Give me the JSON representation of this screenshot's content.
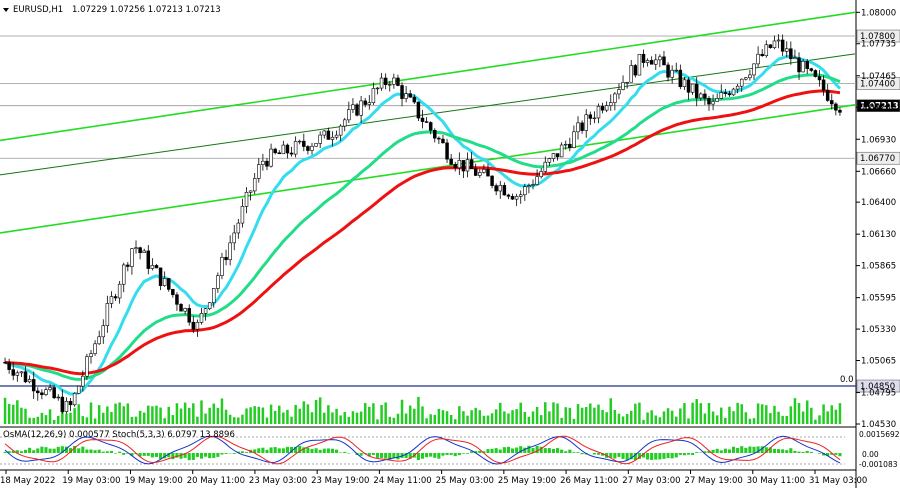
{
  "header": {
    "symbol": "EURUSD,H1",
    "quote": "1.07229 1.07256 1.07213 1.07213"
  },
  "indicator": {
    "label": "OsMA(12,26,9) 0.000577 Stoch(5,3,3) 6.0797 13.8896",
    "axis_top": "0.0015692",
    "axis_zero": "0.00",
    "axis_bottom": "-0.001083"
  },
  "colors": {
    "bull_candle": "#ffffff",
    "bear_candle": "#000000",
    "channel_line": "#22dd22",
    "ema_fast": "#33ddee",
    "ema_mid": "#22dd88",
    "ema_slow": "#ee1111",
    "level_line": "#223388",
    "volume": "#22cc22",
    "histogram": "#22cc22",
    "osc_blue": "#1133cc",
    "osc_red": "#ee2222"
  },
  "chart_data": {
    "type": "candlestick",
    "title": "EURUSD,H1",
    "y_axis_ticks": [
      "1.08000",
      "1.07735",
      "1.07465",
      "1.07200",
      "1.06930",
      "1.06660",
      "1.06400",
      "1.06130",
      "1.05865",
      "1.05595",
      "1.05330",
      "1.05065",
      "1.04795",
      "1.04530"
    ],
    "ylim": [
      1.0453,
      1.0807
    ],
    "x_axis_ticks": [
      "18 May 2022",
      "19 May 03:00",
      "19 May 19:00",
      "20 May 11:00",
      "23 May 03:00",
      "23 May 19:00",
      "24 May 11:00",
      "25 May 03:00",
      "25 May 19:00",
      "26 May 11:00",
      "27 May 03:00",
      "27 May 19:00",
      "30 May 11:00",
      "31 May 03:00"
    ],
    "price_levels": [
      {
        "value": 1.078,
        "label": "1.07800",
        "style": "gray"
      },
      {
        "value": 1.074,
        "label": "1.07400",
        "style": "gray"
      },
      {
        "value": 1.07213,
        "label": "1.07213",
        "style": "current"
      },
      {
        "value": 1.0677,
        "label": "1.06770",
        "style": "gray"
      },
      {
        "value": 1.0485,
        "label": "1.04850",
        "style": "navy"
      }
    ],
    "level_annotation": "0.0",
    "key_points": [
      {
        "time": "18 May 2022",
        "price": 1.0505
      },
      {
        "time": "19 May 03:00",
        "price": 1.0465
      },
      {
        "time": "19 May 19:00",
        "price": 1.0605
      },
      {
        "time": "20 May 11:00",
        "price": 1.0535
      },
      {
        "time": "23 May 03:00",
        "price": 1.0675
      },
      {
        "time": "23 May 19:00",
        "price": 1.0695
      },
      {
        "time": "24 May 11:00",
        "price": 1.0745
      },
      {
        "time": "25 May 03:00",
        "price": 1.0675
      },
      {
        "time": "25 May 19:00",
        "price": 1.0645
      },
      {
        "time": "26 May 11:00",
        "price": 1.0705
      },
      {
        "time": "27 May 03:00",
        "price": 1.0765
      },
      {
        "time": "27 May 19:00",
        "price": 1.072
      },
      {
        "time": "30 May 11:00",
        "price": 1.0775
      },
      {
        "time": "31 May 03:00",
        "price": 1.0721
      }
    ]
  }
}
